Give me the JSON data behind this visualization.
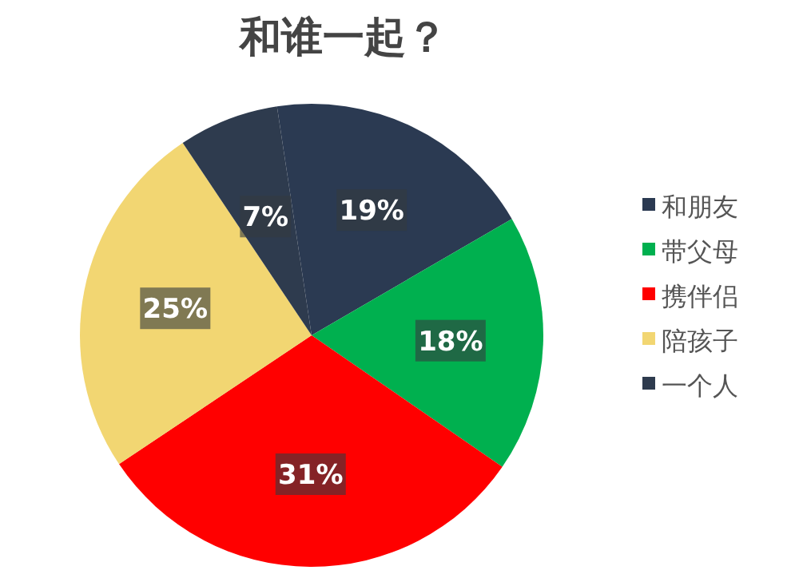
{
  "chart_data": {
    "type": "pie",
    "title": "和谁一起？",
    "categories": [
      "和朋友",
      "带父母",
      "携伴侣",
      "陪孩子",
      "一个人"
    ],
    "values": [
      19,
      18,
      31,
      25,
      7
    ],
    "value_labels": [
      "19%",
      "18%",
      "31%",
      "25%",
      "7%"
    ],
    "colors": [
      "#2b3a52",
      "#00b04f",
      "#ff0000",
      "#f2d672",
      "#2e3b4e"
    ],
    "legend": "right"
  }
}
